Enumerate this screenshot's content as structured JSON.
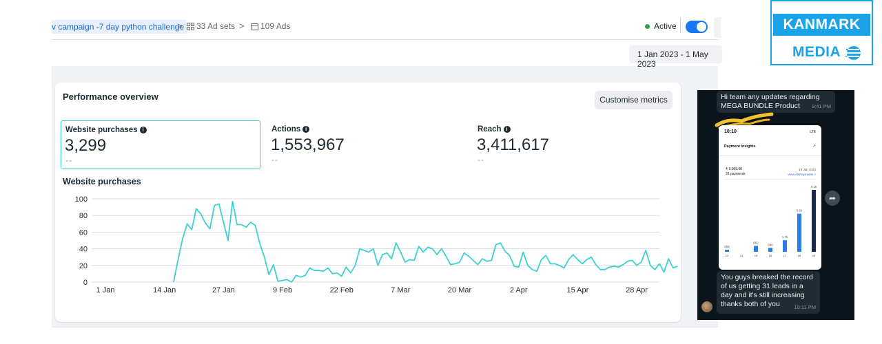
{
  "breadcrumb": {
    "campaign": "v campaign -7 day python challenge",
    "separator": ">",
    "ad_sets": "33 Ad sets",
    "ads": "109 Ads"
  },
  "status": {
    "label": "Active"
  },
  "date_range": "1 Jan 2023 - 1 May 2023",
  "performance": {
    "title": "Performance overview",
    "customise_label": "Customise metrics",
    "metrics": [
      {
        "label": "Website purchases",
        "value": "3,299",
        "delta": "--"
      },
      {
        "label": "Actions",
        "value": "1,553,967",
        "delta": "--"
      },
      {
        "label": "Reach",
        "value": "3,411,617",
        "delta": "--"
      }
    ],
    "chart_title": "Website purchases"
  },
  "chart_data": {
    "type": "line",
    "title": "Website purchases",
    "xlabel": "",
    "ylabel": "",
    "ylim": [
      0,
      100
    ],
    "yticks": [
      0,
      20,
      40,
      60,
      80,
      100
    ],
    "xtick_labels": [
      "1 Jan",
      "14 Jan",
      "27 Jan",
      "9 Feb",
      "22 Feb",
      "7 Mar",
      "20 Mar",
      "2 Apr",
      "15 Apr",
      "28 Apr"
    ],
    "xtick_days": [
      0,
      13,
      26,
      39,
      52,
      65,
      78,
      91,
      104,
      117
    ],
    "color": "#3ecfcf",
    "series": [
      {
        "name": "Website purchases",
        "start_day": 15,
        "values": [
          0,
          27,
          52,
          70,
          63,
          88,
          82,
          71,
          64,
          92,
          94,
          72,
          50,
          97,
          69,
          69,
          66,
          72,
          68,
          46,
          30,
          9,
          21,
          1,
          2,
          3,
          0,
          8,
          6,
          8,
          17,
          14,
          14,
          13,
          17,
          10,
          11,
          7,
          18,
          11,
          20,
          40,
          38,
          36,
          40,
          20,
          33,
          35,
          28,
          47,
          36,
          24,
          27,
          26,
          43,
          36,
          42,
          40,
          33,
          40,
          31,
          21,
          22,
          24,
          35,
          31,
          26,
          21,
          28,
          25,
          26,
          45,
          47,
          37,
          32,
          19,
          18,
          36,
          20,
          15,
          13,
          27,
          32,
          22,
          22,
          20,
          17,
          27,
          33,
          27,
          22,
          27,
          30,
          21,
          15,
          15,
          18,
          19,
          18,
          21,
          25,
          26,
          20,
          24,
          38,
          20,
          15,
          22,
          12,
          28,
          17,
          19
        ]
      }
    ]
  },
  "whatsapp": {
    "message1": "Hi team any updates regarding MEGA BUNDLE Product",
    "time1": "9:41 PM",
    "message2": "You guys breaked the record of us getting 31 leads in a day and it's still increasing thanks both of you",
    "time2": "10:11 PM",
    "phone": {
      "time": "10:10",
      "status": "LTE",
      "title": "Payment Insights",
      "amount": "₹ 9,069.00",
      "payments": "31 payments",
      "date": "19 Jan 2023",
      "view_all": "View All Payments >",
      "bar_values": [
        294,
        0,
        862,
        580,
        1700,
        5600,
        9100
      ],
      "bar_labels": [
        "294",
        "",
        "862",
        "580",
        "1.7k",
        "5.6k",
        "9.1k"
      ],
      "bar_days": [
        "13",
        "14",
        "15",
        "16",
        "17",
        "18",
        "19"
      ]
    }
  },
  "logo": {
    "line1": "KANMARK",
    "line2": "MEDIA"
  }
}
